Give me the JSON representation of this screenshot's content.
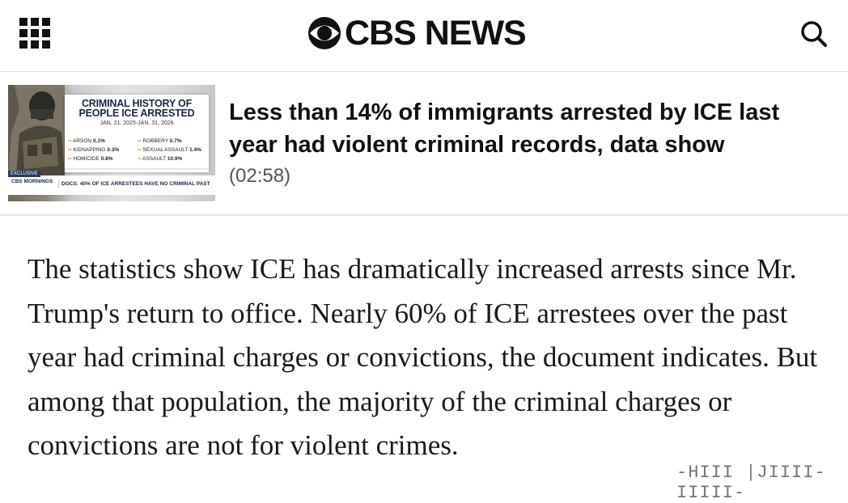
{
  "header": {
    "brand": "CBS NEWS",
    "menu_icon": "grid-menu-icon",
    "search_icon": "search-icon",
    "logo_icon": "cbs-eye-icon"
  },
  "video": {
    "title": "Less than 14% of immigrants arrested by ICE last year had violent criminal records, data show",
    "duration": "(02:58)",
    "thumbnail": {
      "card_title_line1": "CRIMINAL HISTORY OF",
      "card_title_line2": "PEOPLE ICE ARRESTED",
      "card_date": "JAN. 21, 2025-JAN. 31, 2026",
      "stats": [
        {
          "label": "ARSON",
          "value": "0.1%"
        },
        {
          "label": "ROBBERY",
          "value": "0.7%"
        },
        {
          "label": "KIDNAPPING",
          "value": "0.3%"
        },
        {
          "label": "SEXUAL ASSAULT",
          "value": "1.4%"
        },
        {
          "label": "HOMICIDE",
          "value": "0.8%"
        },
        {
          "label": "ASSAULT",
          "value": "10.9%"
        }
      ],
      "exclusive": "EXCLUSIVE",
      "show_logo": "CBS MORNINGS",
      "lower_third": "DOCS: 40% OF ICE ARRESTEES HAVE NO CRIMINAL PAST"
    }
  },
  "article": {
    "paragraph": "The statistics show ICE has dramatically increased arrests since Mr. Trump's return to office. Nearly 60% of ICE arrestees over the past year had criminal charges or convictions, the document indicates. But among that population, the majority of the criminal charges or convictions are not for violent crimes."
  },
  "watermark": "-HIII |JIIII- IIIII-"
}
